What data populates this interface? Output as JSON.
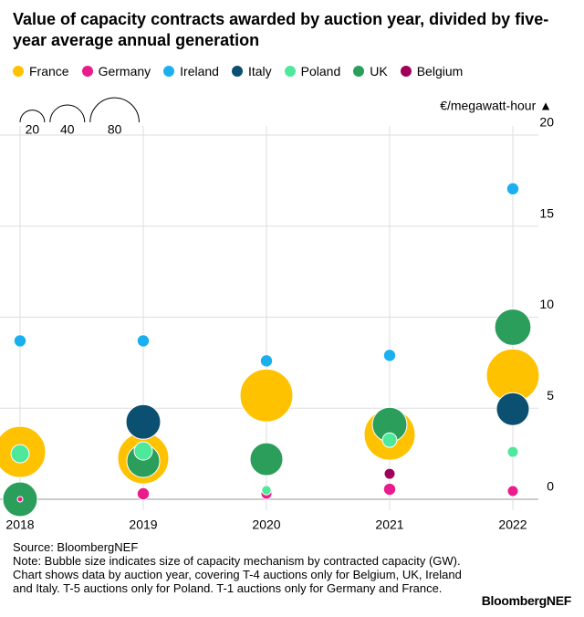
{
  "chart_data": {
    "type": "bubble",
    "title": "Value of capacity contracts awarded by auction year, divided by five-year average annual generation",
    "y_label": "€/megawatt-hour ▲",
    "categories": [
      "2018",
      "2019",
      "2020",
      "2021",
      "2022"
    ],
    "ylim": [
      0,
      20
    ],
    "yticks": [
      0,
      5,
      10,
      15,
      20
    ],
    "grid": true,
    "size_legend": [
      20,
      40,
      80
    ],
    "series": [
      {
        "name": "France",
        "color": "#ffc200",
        "values": [
          2.6,
          2.25,
          5.7,
          3.55,
          6.8
        ],
        "sizes": [
          87,
          87,
          93,
          87,
          93
        ]
      },
      {
        "name": "Germany",
        "color": "#ea1b8c",
        "values": [
          0,
          0.3,
          0.3,
          0.55,
          0.45
        ],
        "sizes": [
          1,
          5,
          4,
          5,
          4
        ]
      },
      {
        "name": "Ireland",
        "color": "#1ab0f0",
        "values": [
          8.7,
          8.7,
          7.6,
          7.9,
          17.05
        ],
        "sizes": [
          5,
          5,
          5,
          5,
          5
        ]
      },
      {
        "name": "Italy",
        "color": "#0b4f71",
        "values": [
          null,
          4.25,
          null,
          null,
          4.95
        ],
        "sizes": [
          null,
          40,
          null,
          null,
          36
        ]
      },
      {
        "name": "Poland",
        "color": "#4ee89a",
        "values": [
          2.5,
          2.65,
          0.5,
          3.25,
          2.6
        ],
        "sizes": [
          11,
          11,
          3,
          7,
          4
        ]
      },
      {
        "name": "UK",
        "color": "#2a9e5a",
        "values": [
          0,
          2.1,
          2.2,
          4.1,
          9.45
        ],
        "sizes": [
          40,
          36,
          36,
          40,
          44
        ]
      },
      {
        "name": "Belgium",
        "color": "#a0005a",
        "values": [
          null,
          null,
          null,
          1.4,
          null
        ],
        "sizes": [
          null,
          null,
          null,
          4,
          null
        ]
      }
    ],
    "source": "Source: BloombergNEF",
    "note": "Note: Bubble size indicates size of capacity mechanism by contracted capacity (GW). Chart shows data by auction year, covering T-4 auctions only for Belgium, UK, Ireland and Italy. T-5 auctions only for Poland. T-1 auctions only for Germany and France.",
    "brand": "BloombergNEF"
  }
}
